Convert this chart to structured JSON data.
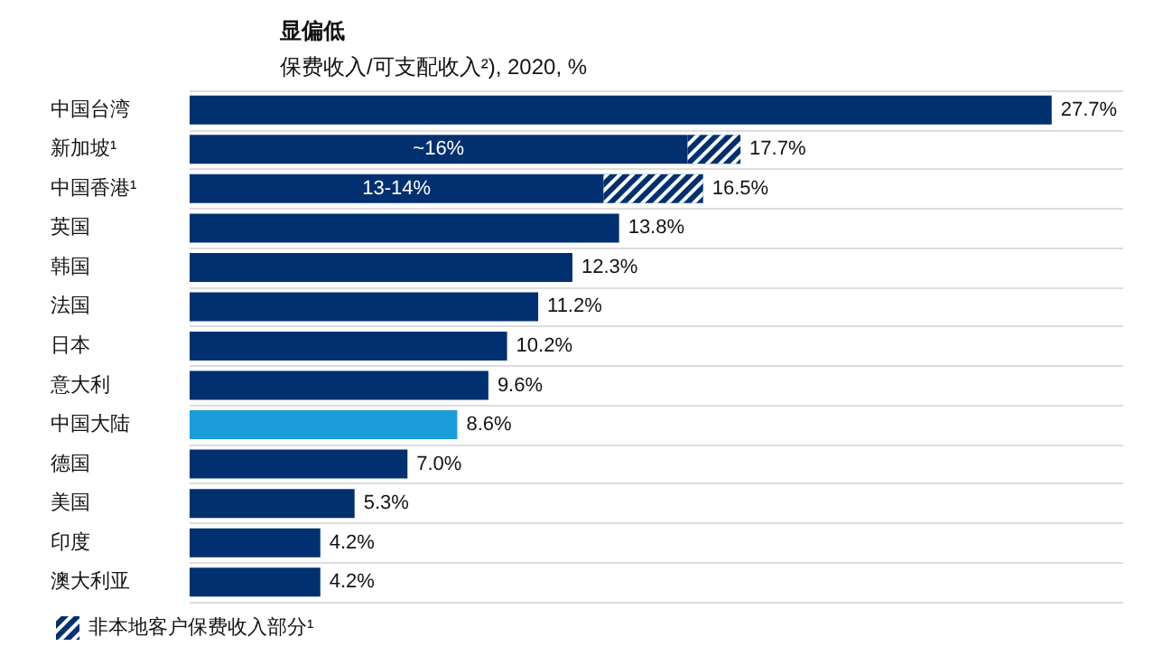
{
  "chart_data": {
    "type": "bar",
    "orientation": "horizontal",
    "stacked": true,
    "title": "显偏低",
    "subtitle": "保费收入/可支配收入²), 2020, %",
    "categories": [
      "中国台湾",
      "新加坡¹",
      "中国香港¹",
      "英国",
      "韩国",
      "法国",
      "日本",
      "意大利",
      "中国大陆",
      "德国",
      "美国",
      "印度",
      "澳大利亚"
    ],
    "series": [
      {
        "colors": [
          "#003070",
          "#003070",
          "#003070",
          "#003070",
          "#003070",
          "#003070",
          "#003070",
          "#003070",
          "#1a9cd8",
          "#003070",
          "#003070",
          "#003070",
          "#003070"
        ],
        "values": [
          27.7,
          16,
          13.3,
          13.8,
          12.3,
          11.2,
          10.2,
          9.6,
          8.6,
          7.0,
          5.3,
          4.2,
          4.2
        ],
        "value_labels": [
          null,
          "~16%",
          "13-14%",
          null,
          null,
          null,
          null,
          null,
          null,
          null,
          null,
          null,
          null
        ]
      },
      {
        "name": "非本地客户保费收入部分¹",
        "color": "#003070",
        "values": [
          null,
          1.7,
          3.2,
          null,
          null,
          null,
          null,
          null,
          null,
          null,
          null,
          null,
          null
        ]
      }
    ],
    "totals": [
      "27.7%",
      "17.7%",
      "16.5%",
      "13.8%",
      "12.3%",
      "11.2%",
      "10.2%",
      "9.6%",
      "8.6%",
      "7.0%",
      "5.3%",
      "4.2%",
      "4.2%"
    ],
    "grid": "y",
    "legend": "bottom left"
  }
}
